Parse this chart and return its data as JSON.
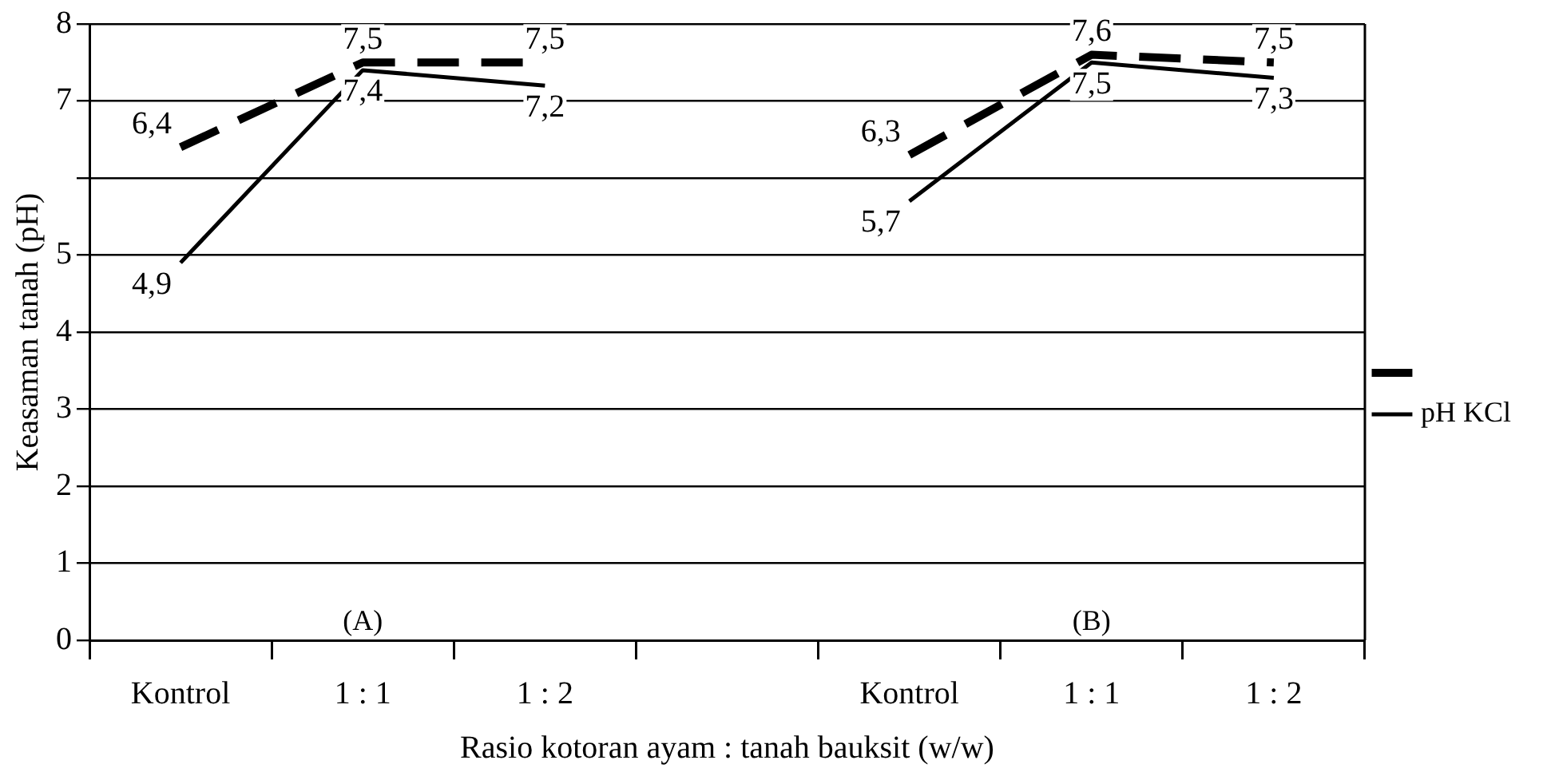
{
  "chart_data": {
    "type": "line",
    "ylabel": "Keasaman tanah (pH)",
    "xlabel": "Rasio kotoran ayam : tanah bauksit (w/w)",
    "categories": [
      "Kontrol",
      "1 : 1",
      "1 : 2",
      null,
      "Kontrol",
      "1 : 1",
      "1 : 2"
    ],
    "series": [
      {
        "color": "#000000",
        "line_style": "dashed",
        "values": [
          6.4,
          7.5,
          7.5,
          null,
          6.3,
          7.6,
          7.5
        ],
        "value_labels": [
          "6,4",
          "7,5",
          "7,5",
          null,
          "6,3",
          "7,6",
          "7,5"
        ]
      },
      {
        "name": "pH KCl",
        "color": "#000000",
        "line_style": "solid",
        "values": [
          4.9,
          7.4,
          7.2,
          null,
          5.7,
          7.5,
          7.3
        ],
        "value_labels": [
          "4,9",
          "7,4",
          "7,2",
          null,
          "5,7",
          "7,5",
          "7,3"
        ]
      }
    ],
    "ylim": [
      0,
      8
    ],
    "yticks": [
      0,
      1,
      2,
      3,
      4,
      5,
      {
        "value": 6,
        "label": null
      },
      7,
      8
    ],
    "grid": "y",
    "legend": "right",
    "marker": "none",
    "annotations": [
      "(A)",
      "(B)"
    ]
  }
}
